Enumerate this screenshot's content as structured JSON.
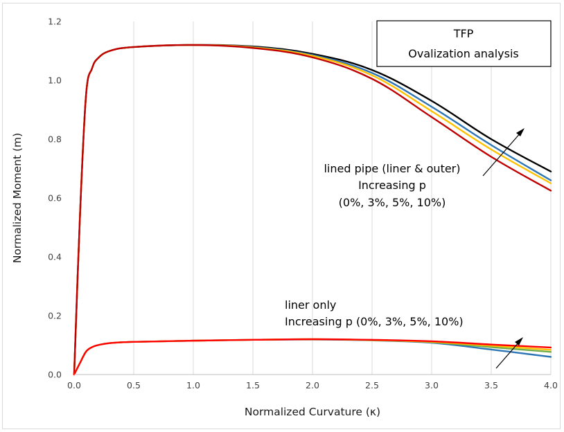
{
  "chart_data": {
    "type": "line",
    "title": "TFP",
    "subtitle": "Ovalization analysis",
    "xlabel": "Normalized Curvature (κ)",
    "ylabel": "Normalized Moment (m)",
    "xlim": [
      0.0,
      4.0
    ],
    "ylim": [
      0.0,
      1.2
    ],
    "x_ticks": [
      "0.0",
      "0.5",
      "1.0",
      "1.5",
      "2.0",
      "2.5",
      "3.0",
      "3.5",
      "4.0"
    ],
    "y_ticks": [
      "0.0",
      "0.2",
      "0.4",
      "0.6",
      "0.8",
      "1.0",
      "1.2"
    ],
    "grid": "vertical",
    "x": [
      0.0,
      0.05,
      0.1,
      0.15,
      0.2,
      0.3,
      0.5,
      1.0,
      1.5,
      2.0,
      2.5,
      3.0,
      3.5,
      4.0
    ],
    "series": [
      {
        "group": "lined pipe (liner & outer)",
        "color": "#000000",
        "values": [
          0.0,
          0.55,
          0.95,
          1.04,
          1.075,
          1.1,
          1.113,
          1.12,
          1.115,
          1.09,
          1.035,
          0.93,
          0.8,
          0.69
        ]
      },
      {
        "group": "lined pipe (liner & outer)",
        "color": "#2e75b6",
        "values": [
          0.0,
          0.55,
          0.95,
          1.04,
          1.075,
          1.1,
          1.113,
          1.12,
          1.113,
          1.086,
          1.025,
          0.91,
          0.78,
          0.66
        ]
      },
      {
        "group": "lined pipe (liner & outer)",
        "color": "#ffc000",
        "values": [
          0.0,
          0.55,
          0.95,
          1.04,
          1.075,
          1.1,
          1.113,
          1.12,
          1.112,
          1.083,
          1.017,
          0.895,
          0.765,
          0.65
        ]
      },
      {
        "group": "lined pipe (liner & outer)",
        "color": "#c00000",
        "values": [
          0.0,
          0.55,
          0.95,
          1.04,
          1.075,
          1.1,
          1.113,
          1.12,
          1.11,
          1.078,
          1.005,
          0.875,
          0.74,
          0.625
        ]
      },
      {
        "group": "liner only",
        "color": "#2e75b6",
        "values": [
          0.0,
          0.04,
          0.078,
          0.093,
          0.1,
          0.107,
          0.111,
          0.115,
          0.118,
          0.119,
          0.116,
          0.108,
          0.085,
          0.06
        ]
      },
      {
        "group": "liner only",
        "color": "#70ad47",
        "values": [
          0.0,
          0.04,
          0.078,
          0.093,
          0.1,
          0.107,
          0.111,
          0.115,
          0.118,
          0.12,
          0.117,
          0.11,
          0.093,
          0.077
        ]
      },
      {
        "group": "liner only",
        "color": "#ffc000",
        "values": [
          0.0,
          0.04,
          0.078,
          0.093,
          0.1,
          0.107,
          0.111,
          0.115,
          0.118,
          0.12,
          0.117,
          0.111,
          0.098,
          0.084
        ]
      },
      {
        "group": "liner only",
        "color": "#ff0000",
        "values": [
          0.0,
          0.04,
          0.078,
          0.093,
          0.1,
          0.107,
          0.111,
          0.115,
          0.118,
          0.12,
          0.118,
          0.113,
          0.102,
          0.092
        ]
      }
    ],
    "annotations": [
      {
        "lines": [
          "lined pipe (liner & outer)",
          "Increasing p",
          "(0%, 3%, 5%, 10%)"
        ]
      },
      {
        "lines": [
          "liner only",
          "Increasing p (0%, 3%, 5%, 10%)"
        ]
      }
    ]
  }
}
